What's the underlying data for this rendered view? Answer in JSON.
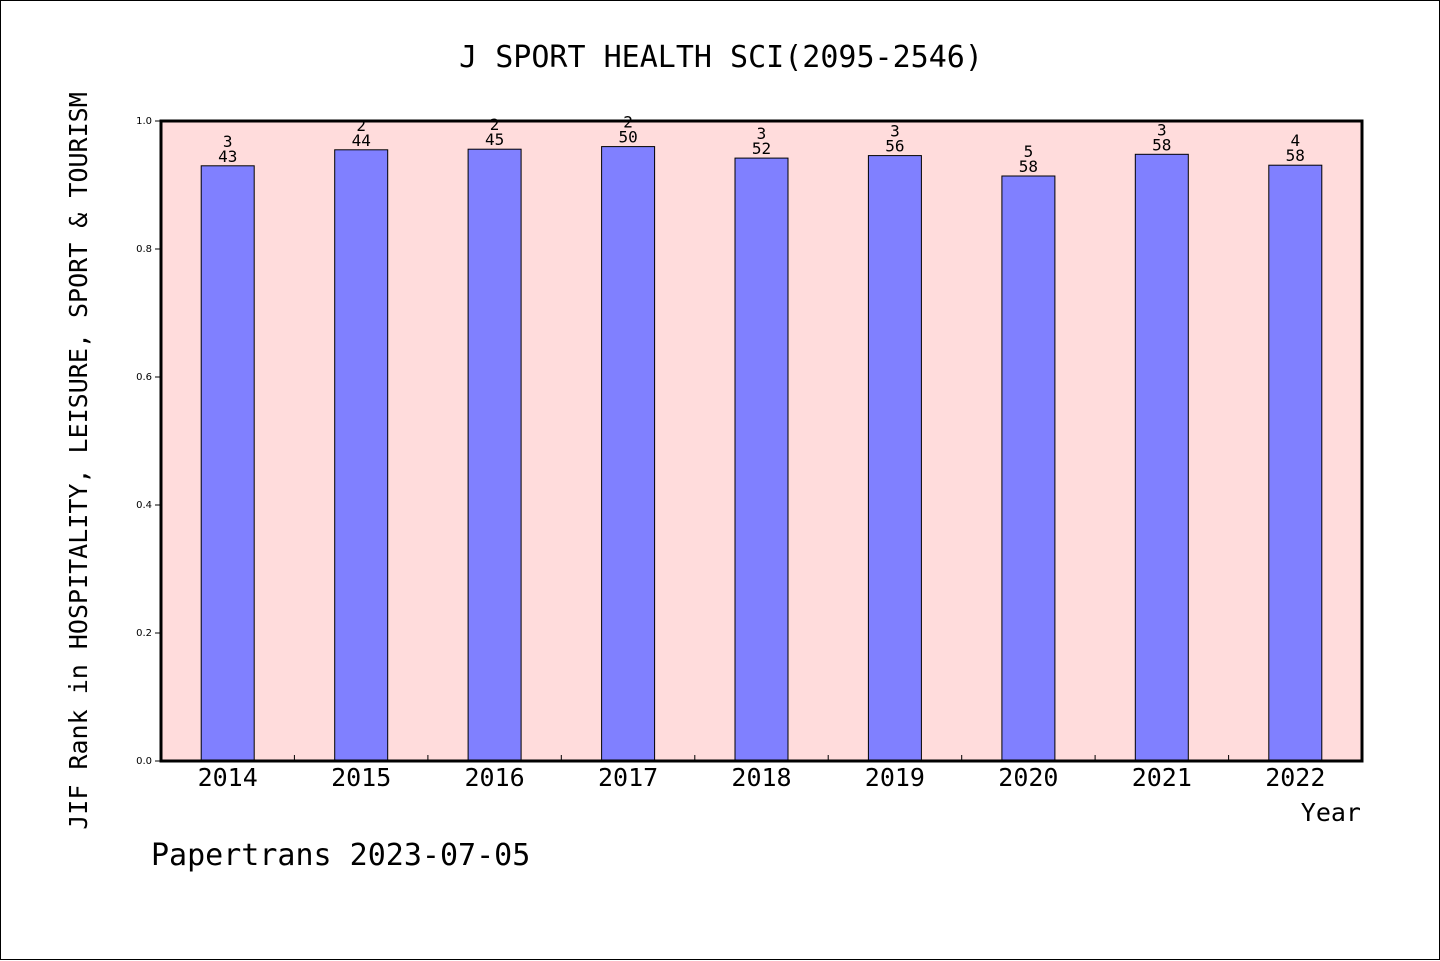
{
  "chart_data": {
    "type": "bar",
    "title": "J SPORT HEALTH SCI(2095-2546)",
    "xlabel": "Year",
    "ylabel": "JIF Rank in HOSPITALITY, LEISURE, SPORT & TOURISM",
    "ylim": [
      0,
      1
    ],
    "yticks": [
      "0.0",
      "0.2",
      "0.4",
      "0.6",
      "0.8",
      "1.0"
    ],
    "grid": false,
    "categories": [
      "2014",
      "2015",
      "2016",
      "2017",
      "2018",
      "2019",
      "2020",
      "2021",
      "2022"
    ],
    "values": [
      0.93,
      0.955,
      0.956,
      0.96,
      0.942,
      0.946,
      0.914,
      0.948,
      0.931
    ],
    "rank_labels": [
      "3",
      "2",
      "2",
      "2",
      "3",
      "3",
      "5",
      "3",
      "4"
    ],
    "total_labels": [
      "43",
      "44",
      "45",
      "50",
      "52",
      "56",
      "58",
      "58",
      "58"
    ],
    "colors": {
      "bar": "#8080ff",
      "plot_bg": "#ffdcdc",
      "axis": "#000000"
    }
  },
  "footer": "Papertrans 2023-07-05"
}
